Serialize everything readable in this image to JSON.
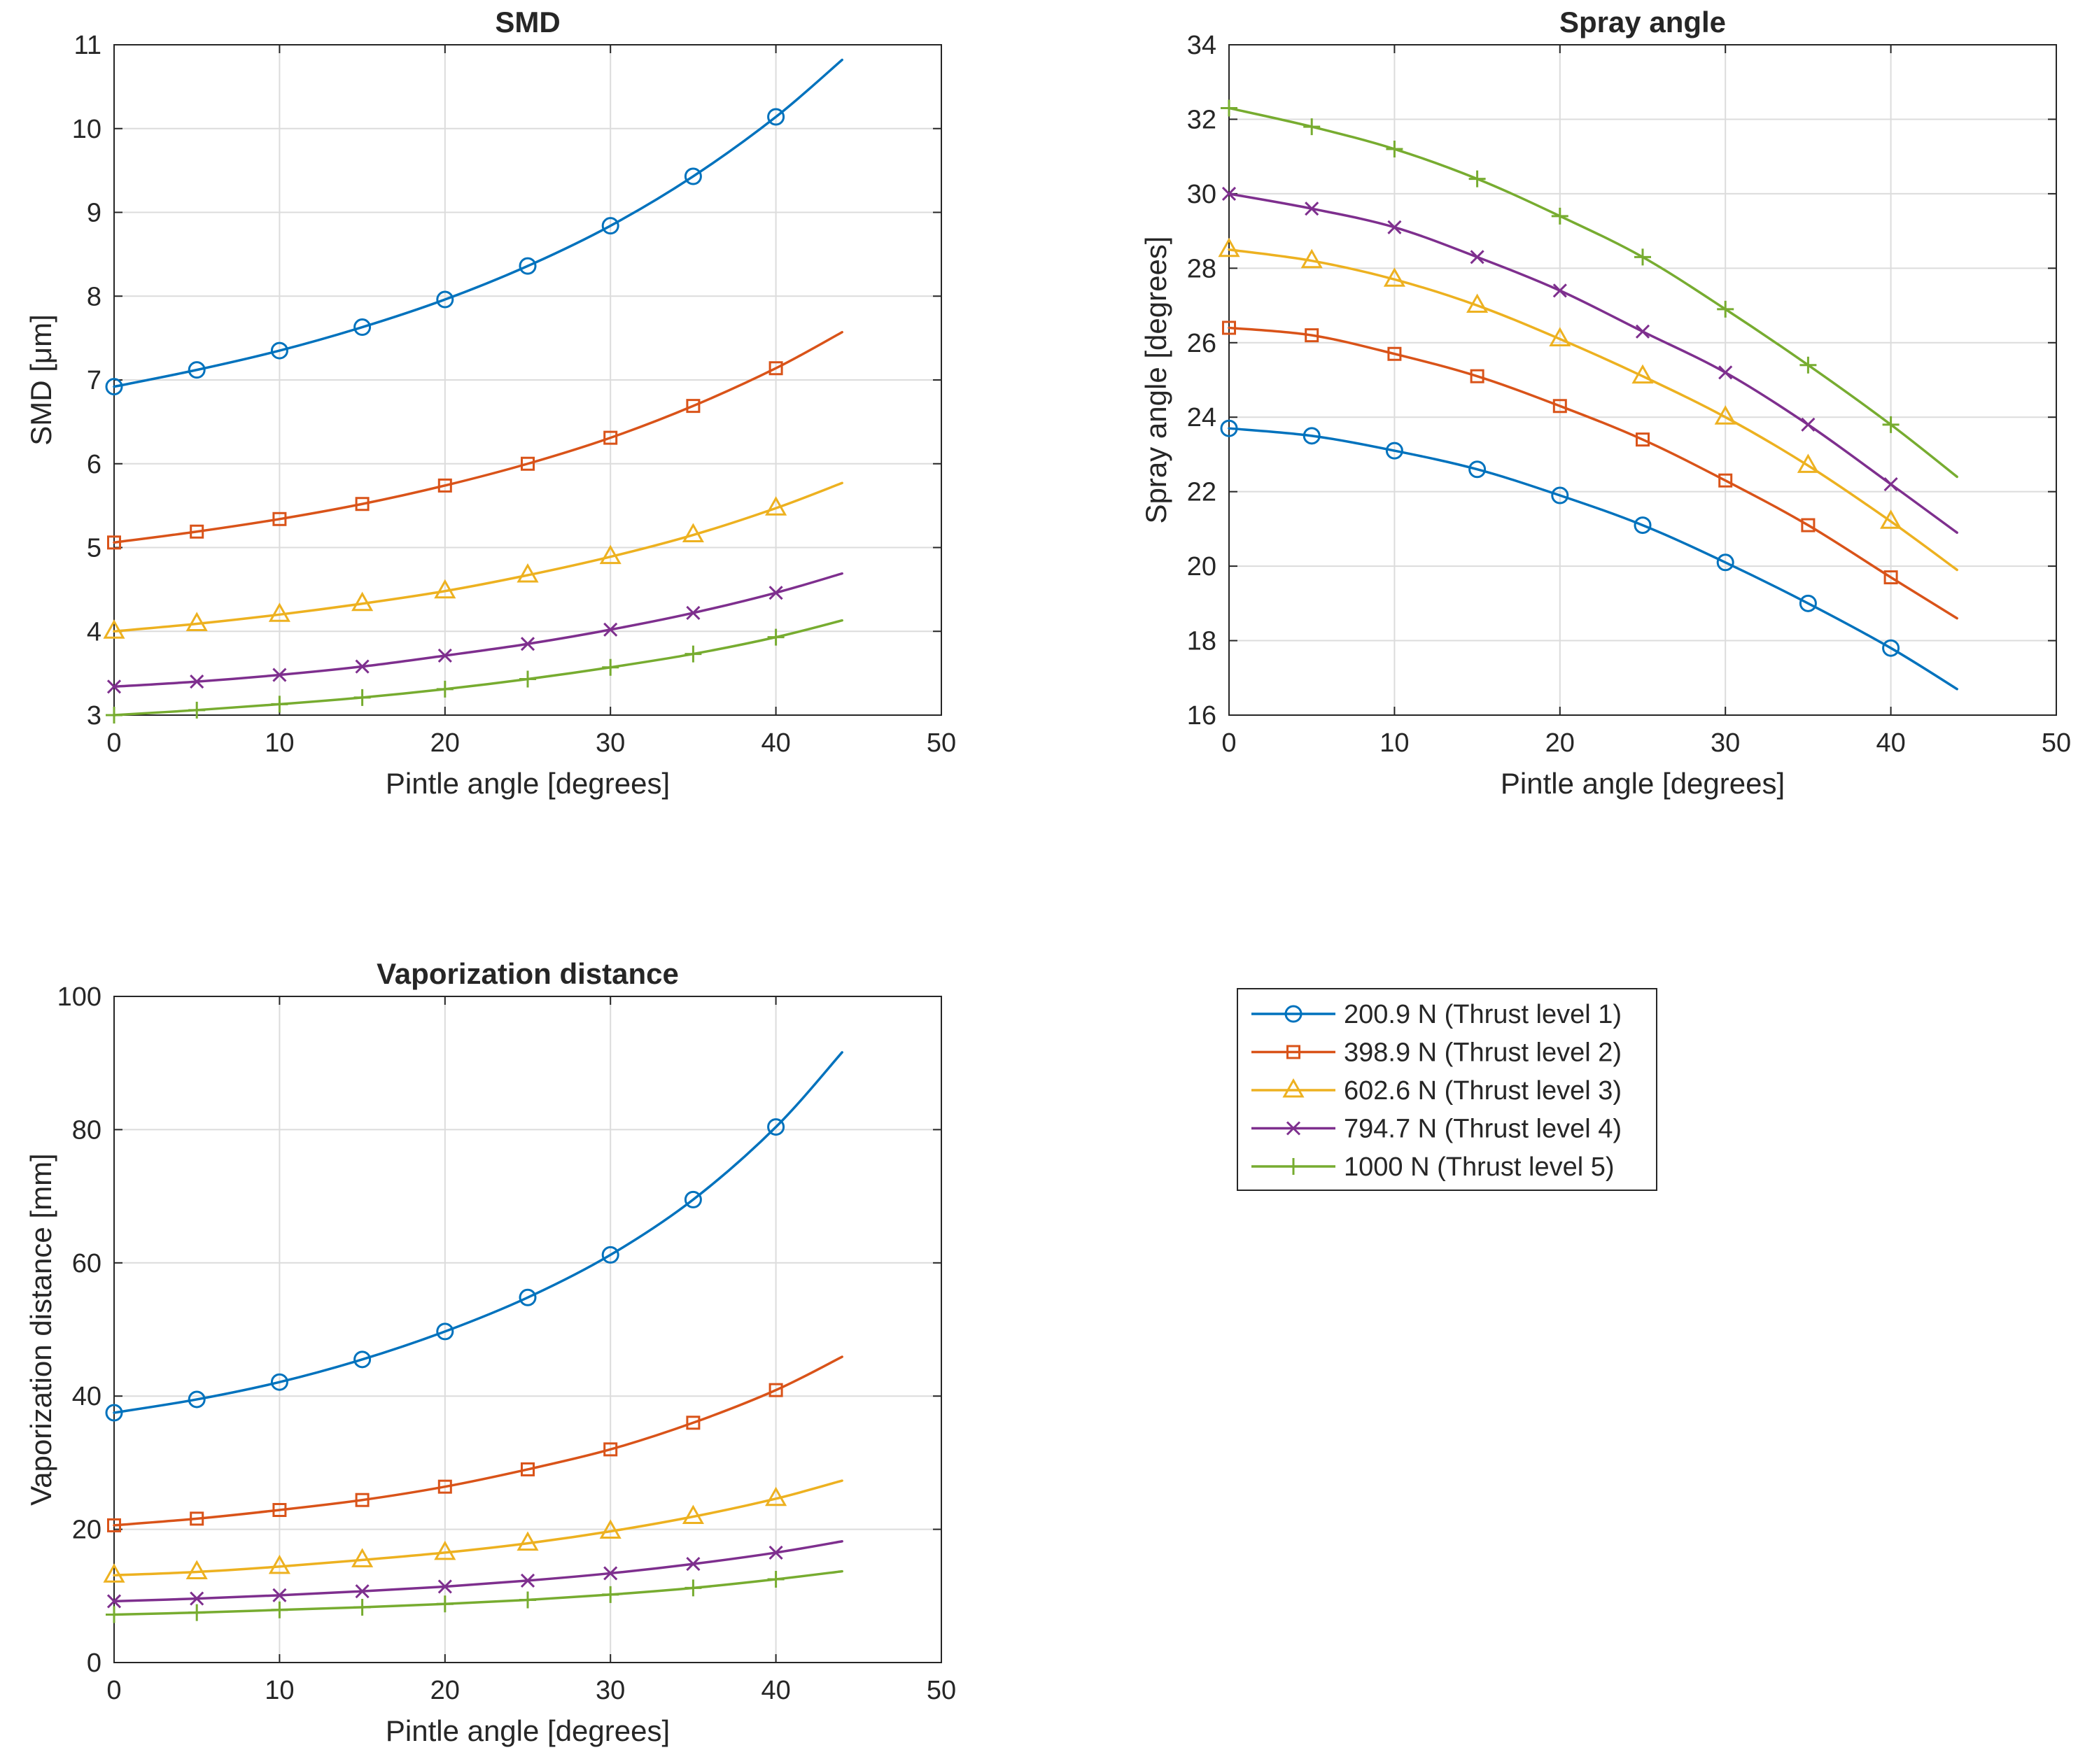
{
  "chart_data": [
    {
      "id": "smd",
      "type": "line",
      "title": "SMD",
      "xlabel": "Pintle angle [degrees]",
      "ylabel": "SMD [μm]",
      "xlim": [
        0,
        50
      ],
      "ylim": [
        3,
        11
      ],
      "xticks": [
        0,
        10,
        20,
        30,
        40,
        50
      ],
      "yticks": [
        3,
        4,
        5,
        6,
        7,
        8,
        9,
        10,
        11
      ],
      "grid": true,
      "x": [
        0,
        5,
        10,
        15,
        20,
        25,
        30,
        35,
        40,
        44
      ],
      "series": [
        {
          "name": "200.9 N (Thrust level 1)",
          "values": [
            6.92,
            7.12,
            7.35,
            7.63,
            7.96,
            8.36,
            8.84,
            9.43,
            10.14,
            10.82
          ]
        },
        {
          "name": "398.9 N (Thrust level 2)",
          "values": [
            5.06,
            5.19,
            5.34,
            5.52,
            5.74,
            6.0,
            6.31,
            6.69,
            7.14,
            7.57
          ]
        },
        {
          "name": "602.6 N (Thrust level 3)",
          "values": [
            4.0,
            4.09,
            4.2,
            4.33,
            4.48,
            4.67,
            4.89,
            5.15,
            5.47,
            5.77
          ]
        },
        {
          "name": "794.7 N (Thrust level 4)",
          "values": [
            3.34,
            3.4,
            3.48,
            3.58,
            3.71,
            3.85,
            4.02,
            4.22,
            4.46,
            4.69
          ]
        },
        {
          "name": "1000 N (Thrust level 5)",
          "values": [
            3.0,
            3.06,
            3.13,
            3.21,
            3.31,
            3.43,
            3.57,
            3.73,
            3.93,
            4.13
          ]
        }
      ]
    },
    {
      "id": "spray",
      "type": "line",
      "title": "Spray angle",
      "xlabel": "Pintle angle [degrees]",
      "ylabel": "Spray angle [degrees]",
      "xlim": [
        0,
        50
      ],
      "ylim": [
        16,
        34
      ],
      "xticks": [
        0,
        10,
        20,
        30,
        40,
        50
      ],
      "yticks": [
        16,
        18,
        20,
        22,
        24,
        26,
        28,
        30,
        32,
        34
      ],
      "grid": true,
      "x": [
        0,
        5,
        10,
        15,
        20,
        25,
        30,
        35,
        40,
        44
      ],
      "series": [
        {
          "name": "200.9 N (Thrust level 1)",
          "values": [
            23.7,
            23.5,
            23.1,
            22.6,
            21.9,
            21.1,
            20.1,
            19.0,
            17.8,
            16.7
          ]
        },
        {
          "name": "398.9 N (Thrust level 2)",
          "values": [
            26.4,
            26.2,
            25.7,
            25.1,
            24.3,
            23.4,
            22.3,
            21.1,
            19.7,
            18.6
          ]
        },
        {
          "name": "602.6 N (Thrust level 3)",
          "values": [
            28.5,
            28.2,
            27.7,
            27.0,
            26.1,
            25.1,
            24.0,
            22.7,
            21.2,
            19.9
          ]
        },
        {
          "name": "794.7 N (Thrust level 4)",
          "values": [
            30.0,
            29.6,
            29.1,
            28.3,
            27.4,
            26.3,
            25.2,
            23.8,
            22.2,
            20.9
          ]
        },
        {
          "name": "1000 N (Thrust level 5)",
          "values": [
            32.3,
            31.8,
            31.2,
            30.4,
            29.4,
            28.3,
            26.9,
            25.4,
            23.8,
            22.4
          ]
        }
      ]
    },
    {
      "id": "vapor",
      "type": "line",
      "title": "Vaporization distance",
      "xlabel": "Pintle angle [degrees]",
      "ylabel": "Vaporization distance [mm]",
      "xlim": [
        0,
        50
      ],
      "ylim": [
        0,
        100
      ],
      "xticks": [
        0,
        10,
        20,
        30,
        40,
        50
      ],
      "yticks": [
        0,
        20,
        40,
        60,
        80,
        100
      ],
      "grid": true,
      "x": [
        0,
        5,
        10,
        15,
        20,
        25,
        30,
        35,
        40,
        44
      ],
      "series": [
        {
          "name": "200.9 N (Thrust level 1)",
          "values": [
            37.5,
            39.5,
            42.1,
            45.5,
            49.7,
            54.8,
            61.2,
            69.5,
            80.4,
            91.6
          ]
        },
        {
          "name": "398.9 N (Thrust level 2)",
          "values": [
            20.6,
            21.6,
            22.9,
            24.4,
            26.4,
            29.0,
            32.0,
            36.0,
            40.9,
            45.9
          ]
        },
        {
          "name": "602.6 N (Thrust level 3)",
          "values": [
            13.1,
            13.6,
            14.4,
            15.4,
            16.5,
            17.9,
            19.7,
            21.9,
            24.6,
            27.3
          ]
        },
        {
          "name": "794.7 N (Thrust level 4)",
          "values": [
            9.2,
            9.6,
            10.1,
            10.7,
            11.4,
            12.3,
            13.4,
            14.8,
            16.5,
            18.2
          ]
        },
        {
          "name": "1000 N (Thrust level 5)",
          "values": [
            7.2,
            7.5,
            7.9,
            8.3,
            8.8,
            9.4,
            10.2,
            11.2,
            12.5,
            13.7
          ]
        }
      ]
    }
  ],
  "legend": {
    "placement": "bottom-right",
    "entries": [
      "200.9 N (Thrust level 1)",
      "398.9 N (Thrust level 2)",
      "602.6 N (Thrust level 3)",
      "794.7 N (Thrust level 4)",
      "1000 N (Thrust level 5)"
    ]
  },
  "series_styles": [
    {
      "color": "#0072BD",
      "marker": "circle"
    },
    {
      "color": "#D95319",
      "marker": "square"
    },
    {
      "color": "#EDB120",
      "marker": "triangle"
    },
    {
      "color": "#7E2F8E",
      "marker": "x"
    },
    {
      "color": "#77AC30",
      "marker": "plus"
    }
  ]
}
